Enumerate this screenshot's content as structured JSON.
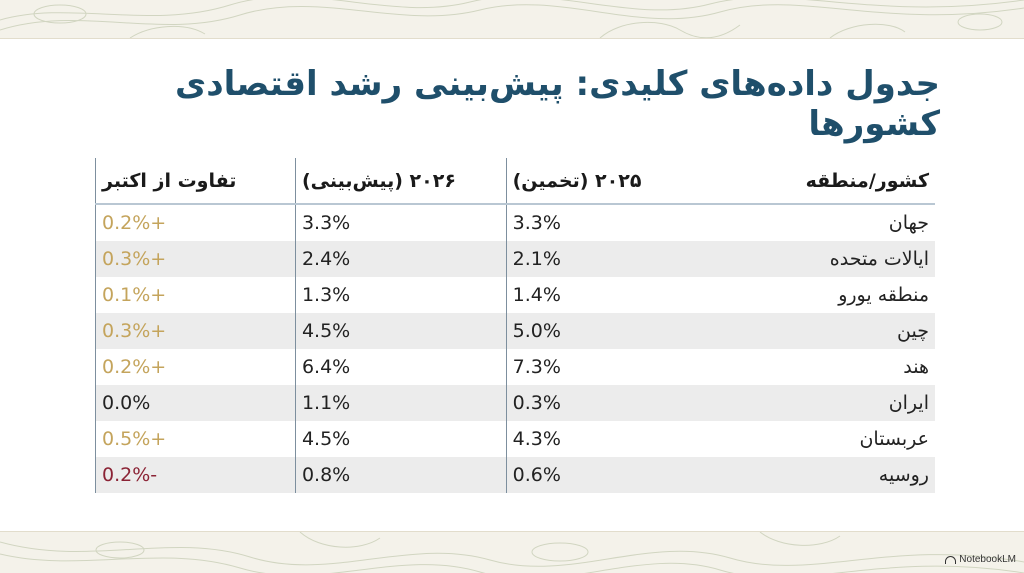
{
  "title": "جدول داده‌های کلیدی: پیش‌بینی رشد اقتصادی کشورها",
  "table": {
    "headers": {
      "country": "کشور/منطقه",
      "est2025": "۲۰۲۵ (تخمین)",
      "proj2026": "۲۰۲۶ (پیش‌بینی)",
      "diff": "تفاوت از اکتبر"
    },
    "rows": [
      {
        "country": "جهان",
        "est2025": "3.3%",
        "proj2026": "3.3%",
        "diff": "0.2%+",
        "diff_color": "#c4a45c"
      },
      {
        "country": "ایالات متحده",
        "est2025": "2.1%",
        "proj2026": "2.4%",
        "diff": "0.3%+",
        "diff_color": "#c4a45c"
      },
      {
        "country": "منطقه یورو",
        "est2025": "1.4%",
        "proj2026": "1.3%",
        "diff": "0.1%+",
        "diff_color": "#c4a45c"
      },
      {
        "country": "چین",
        "est2025": "5.0%",
        "proj2026": "4.5%",
        "diff": "0.3%+",
        "diff_color": "#c4a45c"
      },
      {
        "country": "هند",
        "est2025": "7.3%",
        "proj2026": "6.4%",
        "diff": "0.2%+",
        "diff_color": "#c4a45c"
      },
      {
        "country": "ایران",
        "est2025": "0.3%",
        "proj2026": "1.1%",
        "diff": "0.0%",
        "diff_color": "#222222"
      },
      {
        "country": "عربستان",
        "est2025": "4.3%",
        "proj2026": "4.5%",
        "diff": "0.5%+",
        "diff_color": "#c4a45c"
      },
      {
        "country": "روسیه",
        "est2025": "0.6%",
        "proj2026": "0.8%",
        "diff": "0.2%-",
        "diff_color": "#8b2335"
      }
    ]
  },
  "footer": {
    "brand": "NotebookLM",
    "brand_icon": "notebooklm-logo-icon"
  },
  "colors": {
    "title": "#1f4f6b",
    "band": "#f4f2ea",
    "positive": "#c4a45c",
    "negative": "#8b2335",
    "row_alt": "#ececec"
  }
}
